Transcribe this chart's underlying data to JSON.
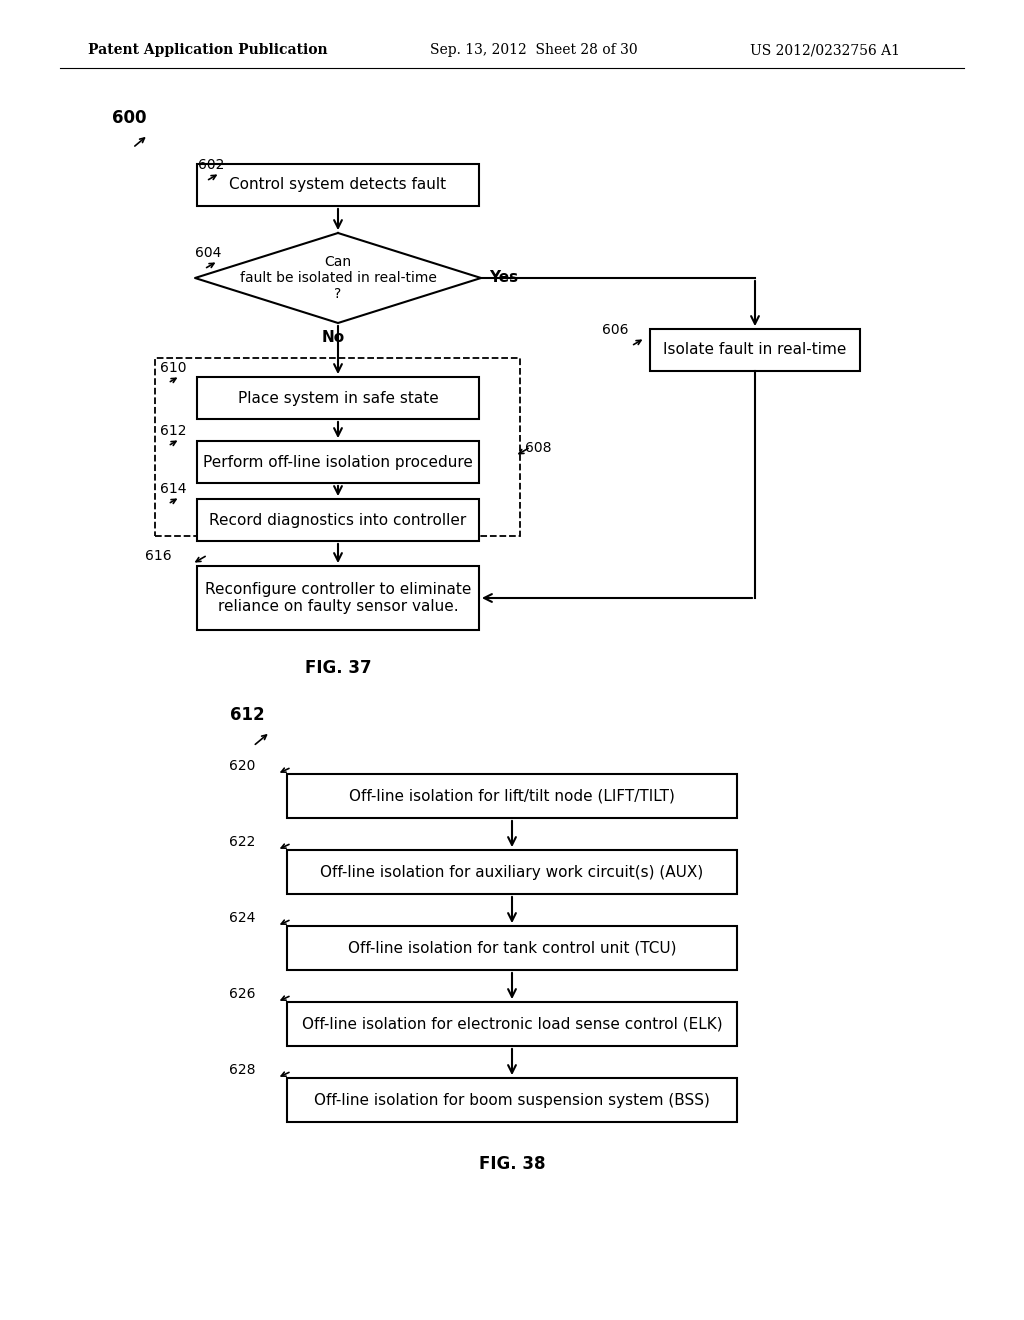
{
  "bg_color": "#ffffff",
  "line_color": "#000000",
  "header_left": "Patent Application Publication",
  "header_mid": "Sep. 13, 2012  Sheet 28 of 30",
  "header_right": "US 2012/0232756 A1",
  "fig37_caption": "FIG. 37",
  "fig38_caption": "FIG. 38",
  "label_600": "600",
  "label_602": "602",
  "label_604": "604",
  "label_606": "606",
  "label_608": "608",
  "label_610": "610",
  "label_612": "612",
  "label_614": "614",
  "label_616": "616",
  "label_612b": "612",
  "label_620": "620",
  "label_622": "622",
  "label_624": "624",
  "label_626": "626",
  "label_628": "628",
  "text_602": "Control system detects fault",
  "text_604": "Can\nfault be isolated in real-time\n?",
  "text_606": "Isolate fault in real-time",
  "text_610": "Place system in safe state",
  "text_612": "Perform off-line isolation procedure",
  "text_614": "Record diagnostics into controller",
  "text_616": "Reconfigure controller to eliminate\nreliance on faulty sensor value.",
  "text_620": "Off-line isolation for lift/tilt node (LIFT/TILT)",
  "text_622": "Off-line isolation for auxiliary work circuit(s) (AUX)",
  "text_624": "Off-line isolation for tank control unit (TCU)",
  "text_626": "Off-line isolation for electronic load sense control (ELK)",
  "text_628": "Off-line isolation for boom suspension system (BSS)",
  "yes_label": "Yes",
  "no_label": "No"
}
